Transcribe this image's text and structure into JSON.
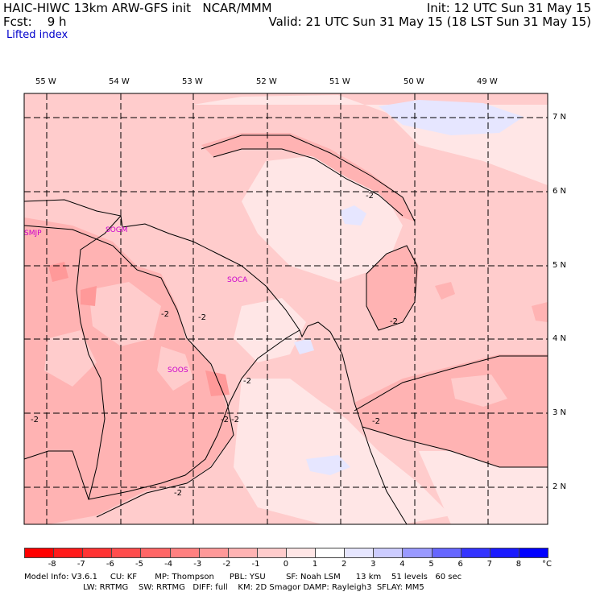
{
  "header": {
    "left_line1": "HAIC-HIWC 13km ARW-GFS init   NCAR/MMM",
    "left_line2": "Fcst:    9 h",
    "right_line1": "Init: 12 UTC Sun 31 May 15",
    "right_line2": "Valid: 21 UTC Sun 31 May 15 (18 LST Sun 31 May 15)",
    "field_name": "Lifted index"
  },
  "longitudes": [
    "55 W",
    "54 W",
    "53 W",
    "52 W",
    "51 W",
    "50 W",
    "49 W"
  ],
  "latitudes": [
    "7 N",
    "6 N",
    "5 N",
    "4 N",
    "3 N",
    "2 N"
  ],
  "stations": [
    "SMJP",
    "SOGM",
    "SOCA",
    "SOOS"
  ],
  "contour_labels": [
    "-2",
    "-2",
    "-2",
    "-2",
    "-2",
    "-2",
    "-2",
    "-2",
    "-2",
    "-2"
  ],
  "colorbar": {
    "labels": [
      "-8",
      "-7",
      "-6",
      "-5",
      "-4",
      "-3",
      "-2",
      "-1",
      "0",
      "1",
      "2",
      "3",
      "4",
      "5",
      "6",
      "7",
      "8"
    ],
    "unit": "°C",
    "colors": [
      "#ff0000",
      "#ff1a1a",
      "#ff3333",
      "#ff4d4d",
      "#ff6666",
      "#ff8080",
      "#ff9999",
      "#ffb3b3",
      "#ffcccc",
      "#ffe6e6",
      "#ffffff",
      "#e6e6ff",
      "#ccccff",
      "#9999ff",
      "#6666ff",
      "#3333ff",
      "#1a1aff",
      "#0000ff"
    ]
  },
  "model_info": {
    "line1": "Model Info: V3.6.1     CU: KF       MP: Thompson      PBL: YSU        SF: Noah LSM      13 km    51 levels   60 sec",
    "line2": "                       LW: RRTMG    SW: RRTMG   DIFF: full    KM: 2D Smagor DAMP: Rayleigh3  SFLAY: MM5"
  }
}
